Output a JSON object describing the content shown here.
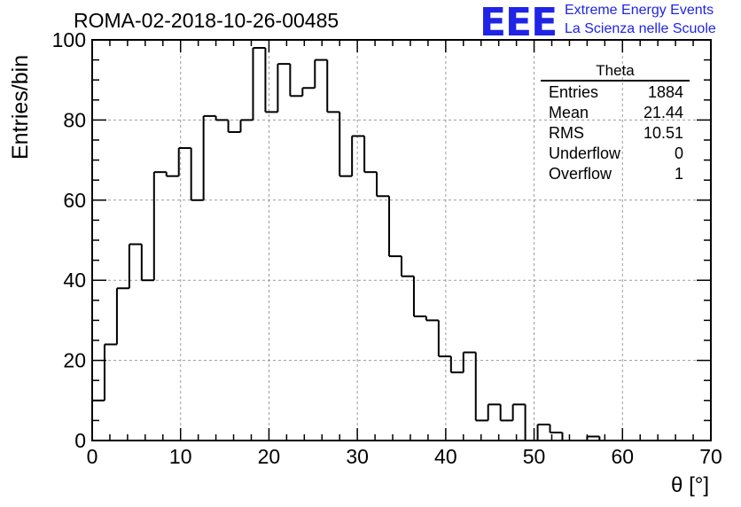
{
  "title": "ROMA-02-2018-10-26-00485",
  "logo": {
    "mark": "EEE",
    "line1": "Extreme Energy Events",
    "line2": "La Scienza nelle Scuole",
    "color": "#1f24e6"
  },
  "stats_box": {
    "title": "Theta",
    "rows": [
      {
        "label": "Entries",
        "value": "1884"
      },
      {
        "label": "Mean",
        "value": "21.44"
      },
      {
        "label": "RMS",
        "value": "10.51"
      },
      {
        "label": "Underflow",
        "value": "0"
      },
      {
        "label": "Overflow",
        "value": "1"
      }
    ]
  },
  "chart_data": {
    "type": "bar",
    "style": "step-histogram",
    "xlabel": "θ [°]",
    "ylabel": "Entries/bin",
    "xlim": [
      0,
      70
    ],
    "ylim": [
      0,
      100
    ],
    "bin_width": 1.4,
    "bin_edges_start": 0,
    "values": [
      10,
      24,
      38,
      49,
      40,
      67,
      66,
      73,
      60,
      81,
      80,
      77,
      80,
      98,
      82,
      94,
      86,
      88,
      95,
      82,
      66,
      76,
      67,
      61,
      46,
      41,
      31,
      30,
      21,
      17,
      22,
      5,
      9,
      5,
      9,
      0,
      4,
      2,
      0,
      0,
      1,
      0,
      0,
      0,
      0,
      0,
      0,
      0,
      0,
      0
    ],
    "x_ticks": [
      0,
      10,
      20,
      30,
      40,
      50,
      60,
      70
    ],
    "y_ticks": [
      0,
      20,
      40,
      60,
      80,
      100
    ],
    "grid": true,
    "line_color": "#000000"
  }
}
